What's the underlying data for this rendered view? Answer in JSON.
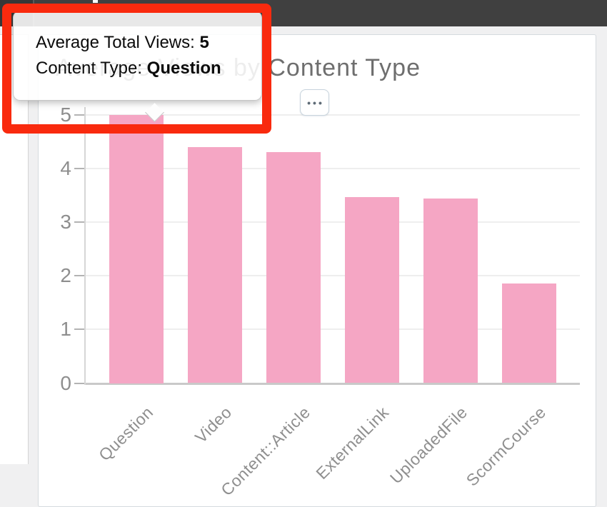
{
  "topbar": {
    "color": "#404040"
  },
  "card": {
    "menu_button_dots": "•••"
  },
  "chart_data": {
    "type": "bar",
    "title": "Average Views by Content Type",
    "categories": [
      "Question",
      "Video",
      "Content::Article",
      "ExternalLink",
      "UploadedFile",
      "ScormCourse"
    ],
    "values": [
      5,
      4.4,
      4.3,
      3.47,
      3.44,
      1.86
    ],
    "xlabel": "",
    "ylabel": "",
    "ylim": [
      0,
      5
    ],
    "yticks": [
      0,
      1,
      2,
      3,
      4,
      5
    ],
    "bar_color": "#f5a6c4",
    "grid": true,
    "legend": "none"
  },
  "tooltip": {
    "line1_label": "Average Total Views: ",
    "line1_value": "5",
    "line2_label": "Content Type: ",
    "line2_value": "Question"
  },
  "annotation": {
    "color": "#f92a0e"
  }
}
